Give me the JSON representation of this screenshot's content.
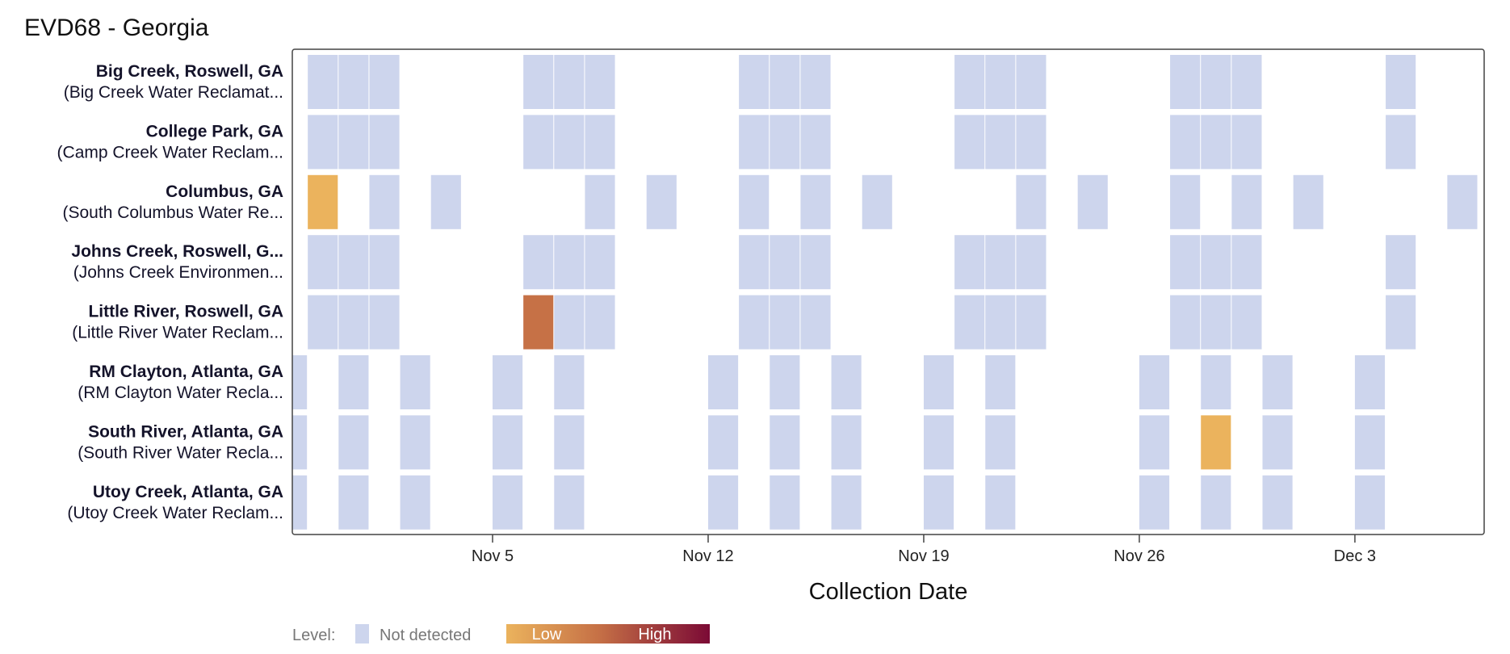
{
  "chart_data": {
    "type": "heatmap",
    "title": "EVD68 - Georgia",
    "xlabel": "Collection Date",
    "x_ticks": [
      {
        "date": "2023-11-05",
        "label": "Nov 5"
      },
      {
        "date": "2023-11-12",
        "label": "Nov 12"
      },
      {
        "date": "2023-11-19",
        "label": "Nov 19"
      },
      {
        "date": "2023-11-26",
        "label": "Nov 26"
      },
      {
        "date": "2023-12-03",
        "label": "Dec 3"
      }
    ],
    "x_range": [
      "2023-10-29",
      "2023-12-07"
    ],
    "colors": {
      "not_detected": "#cdd5ed",
      "low": "#ebb35d",
      "mid": "#c67146",
      "high": "#7b0a35",
      "frame": "#444444"
    },
    "legend": {
      "title": "Level:",
      "not_detected_label": "Not detected",
      "low_label": "Low",
      "high_label": "High",
      "position": "bottom-left"
    },
    "rows": [
      {
        "name": "Big Creek, Roswell, GA",
        "sub": "(Big Creek Water Reclamat...",
        "samples": [
          {
            "date": "2023-10-30",
            "level": "not_detected"
          },
          {
            "date": "2023-10-31",
            "level": "not_detected"
          },
          {
            "date": "2023-11-01",
            "level": "not_detected"
          },
          {
            "date": "2023-11-06",
            "level": "not_detected"
          },
          {
            "date": "2023-11-07",
            "level": "not_detected"
          },
          {
            "date": "2023-11-08",
            "level": "not_detected"
          },
          {
            "date": "2023-11-13",
            "level": "not_detected"
          },
          {
            "date": "2023-11-14",
            "level": "not_detected"
          },
          {
            "date": "2023-11-15",
            "level": "not_detected"
          },
          {
            "date": "2023-11-20",
            "level": "not_detected"
          },
          {
            "date": "2023-11-21",
            "level": "not_detected"
          },
          {
            "date": "2023-11-22",
            "level": "not_detected"
          },
          {
            "date": "2023-11-27",
            "level": "not_detected"
          },
          {
            "date": "2023-11-28",
            "level": "not_detected"
          },
          {
            "date": "2023-11-29",
            "level": "not_detected"
          },
          {
            "date": "2023-12-04",
            "level": "not_detected"
          }
        ]
      },
      {
        "name": "College Park, GA",
        "sub": "(Camp Creek Water Reclam...",
        "samples": [
          {
            "date": "2023-10-30",
            "level": "not_detected"
          },
          {
            "date": "2023-10-31",
            "level": "not_detected"
          },
          {
            "date": "2023-11-01",
            "level": "not_detected"
          },
          {
            "date": "2023-11-06",
            "level": "not_detected"
          },
          {
            "date": "2023-11-07",
            "level": "not_detected"
          },
          {
            "date": "2023-11-08",
            "level": "not_detected"
          },
          {
            "date": "2023-11-13",
            "level": "not_detected"
          },
          {
            "date": "2023-11-14",
            "level": "not_detected"
          },
          {
            "date": "2023-11-15",
            "level": "not_detected"
          },
          {
            "date": "2023-11-20",
            "level": "not_detected"
          },
          {
            "date": "2023-11-21",
            "level": "not_detected"
          },
          {
            "date": "2023-11-22",
            "level": "not_detected"
          },
          {
            "date": "2023-11-27",
            "level": "not_detected"
          },
          {
            "date": "2023-11-28",
            "level": "not_detected"
          },
          {
            "date": "2023-11-29",
            "level": "not_detected"
          },
          {
            "date": "2023-12-04",
            "level": "not_detected"
          }
        ]
      },
      {
        "name": "Columbus, GA",
        "sub": "(South Columbus Water Re...",
        "samples": [
          {
            "date": "2023-10-30",
            "level": "low"
          },
          {
            "date": "2023-11-01",
            "level": "not_detected"
          },
          {
            "date": "2023-11-03",
            "level": "not_detected"
          },
          {
            "date": "2023-11-08",
            "level": "not_detected"
          },
          {
            "date": "2023-11-10",
            "level": "not_detected"
          },
          {
            "date": "2023-11-13",
            "level": "not_detected"
          },
          {
            "date": "2023-11-15",
            "level": "not_detected"
          },
          {
            "date": "2023-11-17",
            "level": "not_detected"
          },
          {
            "date": "2023-11-22",
            "level": "not_detected"
          },
          {
            "date": "2023-11-24",
            "level": "not_detected"
          },
          {
            "date": "2023-11-27",
            "level": "not_detected"
          },
          {
            "date": "2023-11-29",
            "level": "not_detected"
          },
          {
            "date": "2023-12-01",
            "level": "not_detected"
          },
          {
            "date": "2023-12-06",
            "level": "not_detected"
          }
        ]
      },
      {
        "name": "Johns Creek, Roswell, G...",
        "sub": "(Johns Creek Environmen...",
        "samples": [
          {
            "date": "2023-10-30",
            "level": "not_detected"
          },
          {
            "date": "2023-10-31",
            "level": "not_detected"
          },
          {
            "date": "2023-11-01",
            "level": "not_detected"
          },
          {
            "date": "2023-11-06",
            "level": "not_detected"
          },
          {
            "date": "2023-11-07",
            "level": "not_detected"
          },
          {
            "date": "2023-11-08",
            "level": "not_detected"
          },
          {
            "date": "2023-11-13",
            "level": "not_detected"
          },
          {
            "date": "2023-11-14",
            "level": "not_detected"
          },
          {
            "date": "2023-11-15",
            "level": "not_detected"
          },
          {
            "date": "2023-11-20",
            "level": "not_detected"
          },
          {
            "date": "2023-11-21",
            "level": "not_detected"
          },
          {
            "date": "2023-11-22",
            "level": "not_detected"
          },
          {
            "date": "2023-11-27",
            "level": "not_detected"
          },
          {
            "date": "2023-11-28",
            "level": "not_detected"
          },
          {
            "date": "2023-11-29",
            "level": "not_detected"
          },
          {
            "date": "2023-12-04",
            "level": "not_detected"
          }
        ]
      },
      {
        "name": "Little River, Roswell, GA",
        "sub": "(Little River Water Reclam...",
        "samples": [
          {
            "date": "2023-10-30",
            "level": "not_detected"
          },
          {
            "date": "2023-10-31",
            "level": "not_detected"
          },
          {
            "date": "2023-11-01",
            "level": "not_detected"
          },
          {
            "date": "2023-11-06",
            "level": "mid"
          },
          {
            "date": "2023-11-07",
            "level": "not_detected"
          },
          {
            "date": "2023-11-08",
            "level": "not_detected"
          },
          {
            "date": "2023-11-13",
            "level": "not_detected"
          },
          {
            "date": "2023-11-14",
            "level": "not_detected"
          },
          {
            "date": "2023-11-15",
            "level": "not_detected"
          },
          {
            "date": "2023-11-20",
            "level": "not_detected"
          },
          {
            "date": "2023-11-21",
            "level": "not_detected"
          },
          {
            "date": "2023-11-22",
            "level": "not_detected"
          },
          {
            "date": "2023-11-27",
            "level": "not_detected"
          },
          {
            "date": "2023-11-28",
            "level": "not_detected"
          },
          {
            "date": "2023-11-29",
            "level": "not_detected"
          },
          {
            "date": "2023-12-04",
            "level": "not_detected"
          }
        ]
      },
      {
        "name": "RM Clayton, Atlanta, GA",
        "sub": "(RM Clayton Water Recla...",
        "samples": [
          {
            "date": "2023-10-29",
            "level": "not_detected"
          },
          {
            "date": "2023-10-31",
            "level": "not_detected"
          },
          {
            "date": "2023-11-02",
            "level": "not_detected"
          },
          {
            "date": "2023-11-05",
            "level": "not_detected"
          },
          {
            "date": "2023-11-07",
            "level": "not_detected"
          },
          {
            "date": "2023-11-12",
            "level": "not_detected"
          },
          {
            "date": "2023-11-14",
            "level": "not_detected"
          },
          {
            "date": "2023-11-16",
            "level": "not_detected"
          },
          {
            "date": "2023-11-19",
            "level": "not_detected"
          },
          {
            "date": "2023-11-21",
            "level": "not_detected"
          },
          {
            "date": "2023-11-26",
            "level": "not_detected"
          },
          {
            "date": "2023-11-28",
            "level": "not_detected"
          },
          {
            "date": "2023-11-30",
            "level": "not_detected"
          },
          {
            "date": "2023-12-03",
            "level": "not_detected"
          }
        ]
      },
      {
        "name": "South River, Atlanta, GA",
        "sub": "(South River Water Recla...",
        "samples": [
          {
            "date": "2023-10-29",
            "level": "not_detected"
          },
          {
            "date": "2023-10-31",
            "level": "not_detected"
          },
          {
            "date": "2023-11-02",
            "level": "not_detected"
          },
          {
            "date": "2023-11-05",
            "level": "not_detected"
          },
          {
            "date": "2023-11-07",
            "level": "not_detected"
          },
          {
            "date": "2023-11-12",
            "level": "not_detected"
          },
          {
            "date": "2023-11-14",
            "level": "not_detected"
          },
          {
            "date": "2023-11-16",
            "level": "not_detected"
          },
          {
            "date": "2023-11-19",
            "level": "not_detected"
          },
          {
            "date": "2023-11-21",
            "level": "not_detected"
          },
          {
            "date": "2023-11-26",
            "level": "not_detected"
          },
          {
            "date": "2023-11-28",
            "level": "low"
          },
          {
            "date": "2023-11-30",
            "level": "not_detected"
          },
          {
            "date": "2023-12-03",
            "level": "not_detected"
          }
        ]
      },
      {
        "name": "Utoy Creek, Atlanta, GA",
        "sub": "(Utoy Creek Water Reclam...",
        "samples": [
          {
            "date": "2023-10-29",
            "level": "not_detected"
          },
          {
            "date": "2023-10-31",
            "level": "not_detected"
          },
          {
            "date": "2023-11-02",
            "level": "not_detected"
          },
          {
            "date": "2023-11-05",
            "level": "not_detected"
          },
          {
            "date": "2023-11-07",
            "level": "not_detected"
          },
          {
            "date": "2023-11-12",
            "level": "not_detected"
          },
          {
            "date": "2023-11-14",
            "level": "not_detected"
          },
          {
            "date": "2023-11-16",
            "level": "not_detected"
          },
          {
            "date": "2023-11-19",
            "level": "not_detected"
          },
          {
            "date": "2023-11-21",
            "level": "not_detected"
          },
          {
            "date": "2023-11-26",
            "level": "not_detected"
          },
          {
            "date": "2023-11-28",
            "level": "not_detected"
          },
          {
            "date": "2023-11-30",
            "level": "not_detected"
          },
          {
            "date": "2023-12-03",
            "level": "not_detected"
          }
        ]
      }
    ]
  }
}
